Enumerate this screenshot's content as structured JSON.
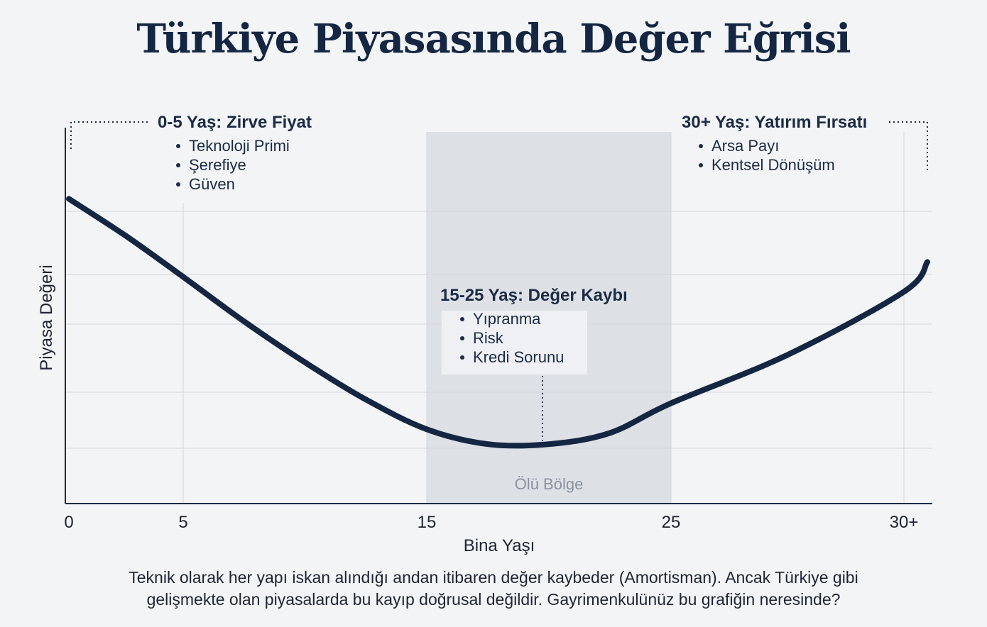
{
  "title": "Türkiye Piyasasında Değer Eğrisi",
  "chart_data": {
    "type": "line",
    "xlabel": "Bina Yaşı",
    "ylabel": "Piyasa Değeri",
    "x_ticks": [
      "0",
      "5",
      "15",
      "25",
      "30+"
    ],
    "series": [
      {
        "x": [
          0,
          2.5,
          5,
          7.5,
          10,
          12.5,
          15,
          17.5,
          20,
          22.5,
          25,
          27.5,
          30,
          31
        ],
        "values": [
          0.82,
          0.72,
          0.61,
          0.49,
          0.38,
          0.28,
          0.2,
          0.16,
          0.16,
          0.19,
          0.27,
          0.4,
          0.57,
          0.65
        ]
      }
    ],
    "shaded_region": {
      "from": 15,
      "to": 25,
      "label": "Ölü Bölge"
    },
    "annotations": [
      {
        "title": "0-5 Yaş: Zirve Fiyat",
        "items": [
          "Teknoloji Primi",
          "Şerefiye",
          "Güven"
        ]
      },
      {
        "title": "15-25 Yaş: Değer Kaybı",
        "items": [
          "Yıpranma",
          "Risk",
          "Kredi Sorunu"
        ]
      },
      {
        "title": "30+ Yaş: Yatırım Fırsatı",
        "items": [
          "Arsa Payı",
          "Kentsel Dönüşüm"
        ]
      }
    ],
    "grid": true,
    "colors": {
      "line": "#142642",
      "shade": "#dcdfe4",
      "grid": "#d2d6dc",
      "axis": "#1c2b45"
    }
  },
  "caption": [
    "Teknik olarak her yapı iskan alındığı andan itibaren değer kaybeder (Amortisman). Ancak Türkiye gibi",
    "gelişmekte olan piyasalarda bu kayıp doğrusal değildir. Gayrimenkulünüz bu grafiğin neresinde?"
  ]
}
